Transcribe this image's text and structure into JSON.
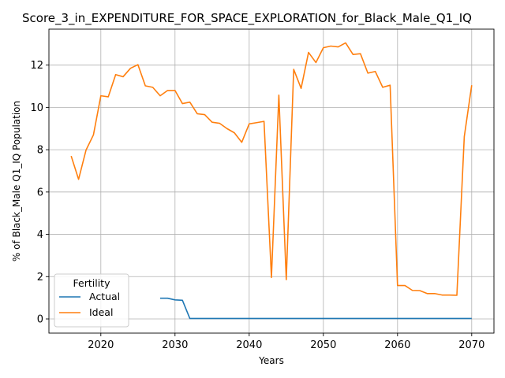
{
  "chart_data": {
    "type": "line",
    "title": "Score_3_in_EXPENDITURE_FOR_SPACE_EXPLORATION_for_Black_Male_Q1_IQ",
    "xlabel": "Years",
    "ylabel": "% of Black_Male Q1_IQ Population",
    "xlim": [
      2013,
      2073
    ],
    "ylim": [
      -0.67,
      13.7
    ],
    "x_ticks": [
      2020,
      2030,
      2040,
      2050,
      2060,
      2070
    ],
    "y_ticks": [
      0,
      2,
      4,
      6,
      8,
      10,
      12
    ],
    "grid": true,
    "legend": {
      "title": "Fertility",
      "placement": "lower-left"
    },
    "series": [
      {
        "name": "Actual",
        "color": "#1f77b4",
        "x": [
          2028,
          2029,
          2030,
          2031,
          2032,
          2033,
          2034,
          2035,
          2036,
          2037,
          2038,
          2039,
          2040,
          2041,
          2042,
          2043,
          2044,
          2045,
          2046,
          2047,
          2048,
          2049,
          2050,
          2051,
          2052,
          2053,
          2054,
          2055,
          2056,
          2057,
          2058,
          2059,
          2060,
          2061,
          2062,
          2063,
          2064,
          2065,
          2066,
          2067,
          2068,
          2069,
          2070
        ],
        "y": [
          0.98,
          0.98,
          0.9,
          0.88,
          0.02,
          0.02,
          0.02,
          0.02,
          0.02,
          0.02,
          0.02,
          0.02,
          0.02,
          0.02,
          0.02,
          0.02,
          0.02,
          0.02,
          0.02,
          0.02,
          0.02,
          0.02,
          0.02,
          0.02,
          0.02,
          0.02,
          0.02,
          0.02,
          0.02,
          0.02,
          0.02,
          0.02,
          0.02,
          0.02,
          0.02,
          0.02,
          0.02,
          0.02,
          0.02,
          0.02,
          0.02,
          0.02,
          0.02
        ]
      },
      {
        "name": "Ideal",
        "color": "#ff7f0e",
        "x": [
          2016,
          2017,
          2018,
          2019,
          2020,
          2021,
          2022,
          2023,
          2024,
          2025,
          2026,
          2027,
          2028,
          2029,
          2030,
          2031,
          2032,
          2033,
          2034,
          2035,
          2036,
          2037,
          2038,
          2039,
          2040,
          2041,
          2042,
          2043,
          2044,
          2045,
          2046,
          2047,
          2048,
          2049,
          2050,
          2051,
          2052,
          2053,
          2054,
          2055,
          2056,
          2057,
          2058,
          2059,
          2060,
          2061,
          2062,
          2063,
          2064,
          2065,
          2066,
          2067,
          2068,
          2069,
          2070
        ],
        "y": [
          7.7,
          6.6,
          7.98,
          8.7,
          10.55,
          10.5,
          11.55,
          11.45,
          11.85,
          12.02,
          11.02,
          10.95,
          10.55,
          10.8,
          10.8,
          10.18,
          10.25,
          9.7,
          9.66,
          9.3,
          9.25,
          9.0,
          8.8,
          8.35,
          9.22,
          9.28,
          9.34,
          1.96,
          10.58,
          1.86,
          11.8,
          10.9,
          12.6,
          12.12,
          12.82,
          12.9,
          12.86,
          13.05,
          12.5,
          12.54,
          11.62,
          11.7,
          10.95,
          11.05,
          1.58,
          1.58,
          1.35,
          1.34,
          1.2,
          1.2,
          1.13,
          1.13,
          1.12,
          8.62,
          11.05
        ]
      }
    ]
  }
}
